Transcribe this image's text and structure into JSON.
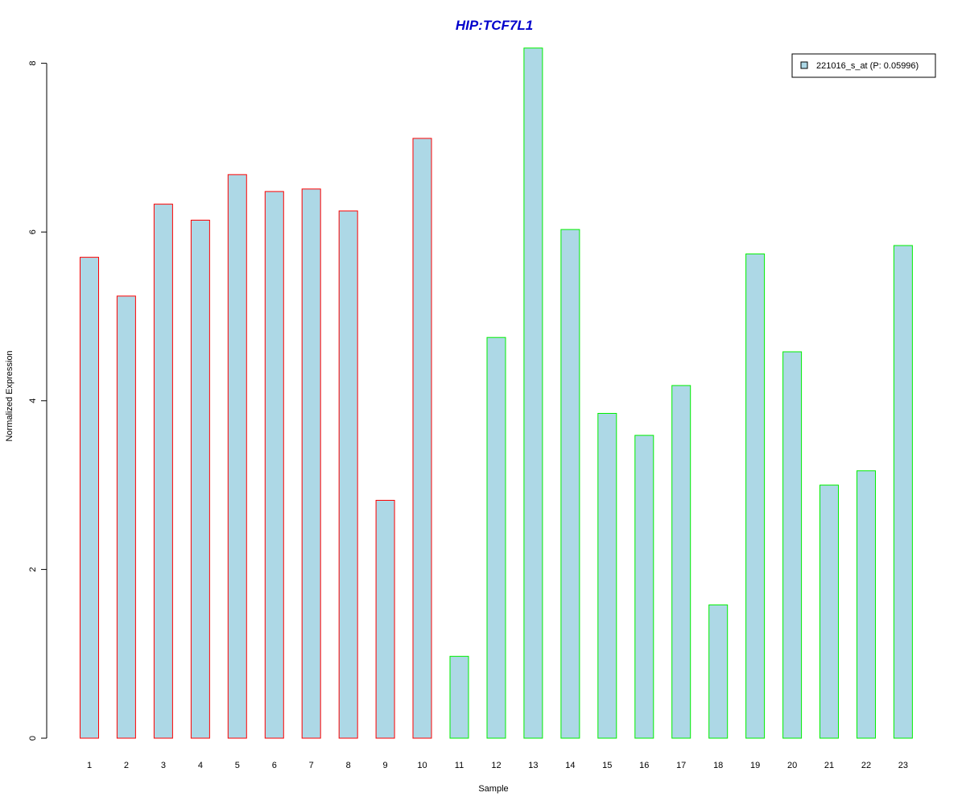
{
  "chart_data": {
    "type": "bar",
    "title": "HIP:TCF7L1",
    "xlabel": "Sample",
    "ylabel": "Normalized Expression",
    "categories": [
      "1",
      "2",
      "3",
      "4",
      "5",
      "6",
      "7",
      "8",
      "9",
      "10",
      "11",
      "12",
      "13",
      "14",
      "15",
      "16",
      "17",
      "18",
      "19",
      "20",
      "21",
      "22",
      "23"
    ],
    "series": [
      {
        "name": "221016_s_at (P: 0.05996)",
        "values": [
          5.7,
          5.24,
          6.33,
          6.14,
          6.68,
          6.48,
          6.51,
          6.25,
          2.82,
          7.11,
          0.97,
          4.75,
          8.18,
          6.03,
          3.85,
          3.59,
          4.18,
          1.58,
          5.74,
          4.58,
          3.0,
          3.17,
          5.84
        ]
      }
    ],
    "groups": [
      {
        "samples": [
          "1",
          "2",
          "3",
          "4",
          "5",
          "6",
          "7",
          "8",
          "9",
          "10"
        ],
        "border_color": "#ff0000"
      },
      {
        "samples": [
          "11",
          "12",
          "13",
          "14",
          "15",
          "16",
          "17",
          "18",
          "19",
          "20",
          "21",
          "22",
          "23"
        ],
        "border_color": "#00ee00"
      }
    ],
    "yticks": [
      0,
      2,
      4,
      6,
      8
    ],
    "ylim": [
      0,
      8.2
    ],
    "grid": false,
    "legend_position": "top-right"
  },
  "colors": {
    "bar_fill": "#add8e6",
    "title": "#0000cc"
  }
}
